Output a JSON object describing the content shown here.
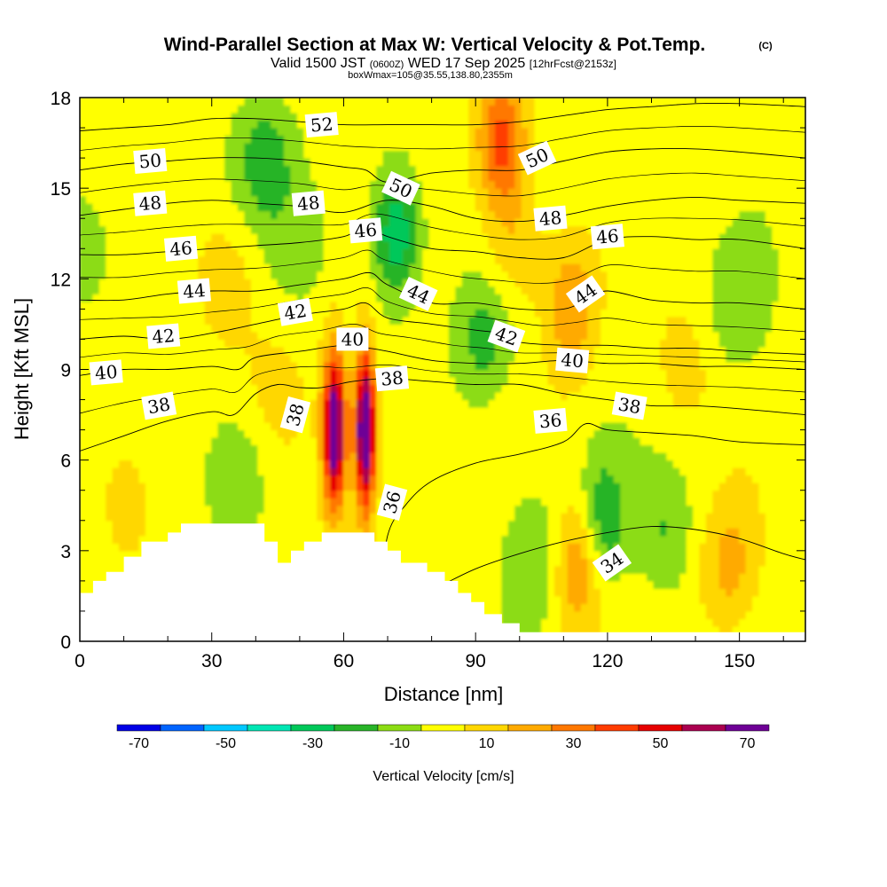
{
  "figure": {
    "title_main": "Wind-Parallel Section at Max W: Vertical Velocity & Pot.Temp.",
    "title_mark": "(C)",
    "subtitle_a": "Valid 1500 JST",
    "subtitle_b": "(0600Z)",
    "subtitle_c": "WED 17 Sep 2025",
    "subtitle_d": "[12hrFcst@2153z]",
    "subtitle_line3": "boxWmax=105@35.55,138.80,2355m"
  },
  "chart_data": {
    "type": "heatmap",
    "title": "Wind-Parallel Section at Max W: Vertical Velocity & Pot.Temp.",
    "xlabel": "Distance [nm]",
    "ylabel": "Height [Kft MSL]",
    "xlim": [
      0,
      165
    ],
    "ylim": [
      0,
      18
    ],
    "x_ticks": [
      0,
      30,
      60,
      90,
      120,
      150
    ],
    "y_ticks": [
      0,
      3,
      6,
      9,
      12,
      15,
      18
    ],
    "colorbar": {
      "label": "Vertical Velocity [cm/s]",
      "bounds": [
        -75,
        -65,
        -55,
        -45,
        -35,
        -25,
        -15,
        -5,
        5,
        15,
        25,
        35,
        45,
        55,
        65,
        75
      ],
      "colors": [
        "#0000e6",
        "#0064ff",
        "#00c8ff",
        "#00e6b4",
        "#00c85a",
        "#28b428",
        "#8cdc14",
        "#ffff00",
        "#ffd700",
        "#ffaa00",
        "#ff7800",
        "#ff3c00",
        "#e60000",
        "#aa0050",
        "#6e0096"
      ],
      "tick_values": [
        -70,
        -50,
        -30,
        -10,
        10,
        30,
        50,
        70
      ],
      "tick_labels": [
        "-70",
        "-50",
        "-30",
        "-10",
        "10",
        "30",
        "50",
        "70"
      ]
    },
    "vertical_velocity_features": [
      {
        "x": 58,
        "y": 7.0,
        "w": 80,
        "desc": "updraft"
      },
      {
        "x": 65,
        "y": 7.0,
        "w": 90,
        "desc": "updraft core"
      },
      {
        "x": 45,
        "y": 8.5,
        "w": 6
      },
      {
        "x": 96,
        "y": 16.5,
        "w": 40
      },
      {
        "x": 99,
        "y": 13.0,
        "w": 15
      },
      {
        "x": 112,
        "y": 11.0,
        "w": 25
      },
      {
        "x": 113,
        "y": 2.5,
        "w": 28
      },
      {
        "x": 148,
        "y": 2.5,
        "w": 20
      },
      {
        "x": 11,
        "y": 5.0,
        "w": 10
      },
      {
        "x": 34,
        "y": 12.0,
        "w": 12
      },
      {
        "x": 137,
        "y": 9.0,
        "w": 10
      },
      {
        "x": 72,
        "y": 13.5,
        "w": -35
      },
      {
        "x": 42,
        "y": 16.0,
        "w": -20
      },
      {
        "x": 92,
        "y": 10.0,
        "w": -20
      },
      {
        "x": 119,
        "y": 4.0,
        "w": -24
      },
      {
        "x": 36,
        "y": 5.5,
        "w": -16
      },
      {
        "x": 104,
        "y": 3.0,
        "w": -15
      },
      {
        "x": 133,
        "y": 3.5,
        "w": -15
      },
      {
        "x": 150,
        "y": 11.0,
        "w": -14
      },
      {
        "x": 2,
        "y": 13.0,
        "w": -10
      },
      {
        "x": 50,
        "y": 13.0,
        "w": -8
      }
    ],
    "terrain": [
      [
        0,
        1.6
      ],
      [
        3,
        1.6
      ],
      [
        3,
        2.0
      ],
      [
        6,
        2.0
      ],
      [
        6,
        2.3
      ],
      [
        10,
        2.3
      ],
      [
        10,
        2.8
      ],
      [
        14,
        2.8
      ],
      [
        14,
        3.3
      ],
      [
        20,
        3.3
      ],
      [
        20,
        3.6
      ],
      [
        23,
        3.6
      ],
      [
        23,
        3.9
      ],
      [
        42,
        3.9
      ],
      [
        42,
        3.3
      ],
      [
        45,
        3.3
      ],
      [
        45,
        2.6
      ],
      [
        48,
        2.6
      ],
      [
        48,
        3.0
      ],
      [
        51,
        3.0
      ],
      [
        51,
        3.3
      ],
      [
        55,
        3.3
      ],
      [
        55,
        3.6
      ],
      [
        67,
        3.6
      ],
      [
        67,
        3.3
      ],
      [
        70,
        3.3
      ],
      [
        70,
        3.0
      ],
      [
        73,
        3.0
      ],
      [
        73,
        2.6
      ],
      [
        79,
        2.6
      ],
      [
        79,
        2.3
      ],
      [
        83,
        2.3
      ],
      [
        83,
        2.0
      ],
      [
        86,
        2.0
      ],
      [
        86,
        1.6
      ],
      [
        89,
        1.6
      ],
      [
        89,
        1.3
      ],
      [
        92,
        1.3
      ],
      [
        92,
        0.9
      ],
      [
        96,
        0.9
      ],
      [
        96,
        0.6
      ],
      [
        100,
        0.6
      ],
      [
        100,
        0.3
      ],
      [
        165,
        0.3
      ]
    ],
    "theta_contours": [
      {
        "value": 34,
        "label": "34",
        "pts": [
          [
            60,
            0.4
          ],
          [
            70,
            1.1
          ],
          [
            80,
            1.7
          ],
          [
            90,
            2.4
          ],
          [
            100,
            2.9
          ],
          [
            110,
            3.3
          ],
          [
            120,
            3.6
          ],
          [
            130,
            3.8
          ],
          [
            140,
            3.7
          ],
          [
            150,
            3.4
          ],
          [
            160,
            2.9
          ],
          [
            165,
            2.7
          ]
        ]
      },
      {
        "value": 36,
        "label": "36",
        "pts": [
          [
            68,
            1.2
          ],
          [
            70,
            3.5
          ],
          [
            74,
            4.5
          ],
          [
            80,
            5.3
          ],
          [
            90,
            5.9
          ],
          [
            100,
            6.2
          ],
          [
            110,
            6.6
          ],
          [
            115,
            7.2
          ],
          [
            120,
            7.0
          ],
          [
            130,
            6.9
          ],
          [
            140,
            6.8
          ],
          [
            150,
            6.6
          ],
          [
            165,
            6.5
          ]
        ]
      },
      {
        "value": 38,
        "label": "38",
        "pts": [
          [
            0,
            6.3
          ],
          [
            10,
            6.8
          ],
          [
            20,
            7.3
          ],
          [
            30,
            7.6
          ],
          [
            35,
            7.5
          ],
          [
            40,
            8.2
          ],
          [
            45,
            8.5
          ],
          [
            50,
            8.4
          ],
          [
            55,
            8.4
          ],
          [
            62,
            8.6
          ],
          [
            70,
            8.7
          ],
          [
            80,
            8.6
          ],
          [
            90,
            8.5
          ],
          [
            100,
            8.5
          ],
          [
            110,
            8.2
          ],
          [
            120,
            8.0
          ],
          [
            130,
            7.8
          ],
          [
            140,
            7.8
          ],
          [
            150,
            7.7
          ],
          [
            165,
            7.5
          ]
        ]
      },
      {
        "value": 40,
        "label": "40",
        "pts": [
          [
            0,
            8.8
          ],
          [
            10,
            9.0
          ],
          [
            20,
            9.0
          ],
          [
            30,
            9.1
          ],
          [
            36,
            9.0
          ],
          [
            40,
            9.4
          ],
          [
            50,
            9.6
          ],
          [
            60,
            9.8
          ],
          [
            66,
            9.7
          ],
          [
            70,
            9.6
          ],
          [
            80,
            9.3
          ],
          [
            90,
            9.2
          ],
          [
            100,
            9.2
          ],
          [
            110,
            9.3
          ],
          [
            120,
            9.2
          ],
          [
            130,
            9.2
          ],
          [
            140,
            9.1
          ],
          [
            150,
            9.1
          ],
          [
            165,
            9.0
          ]
        ]
      },
      {
        "value": 42,
        "label": "42",
        "pts": [
          [
            0,
            10.0
          ],
          [
            10,
            10.1
          ],
          [
            20,
            10.0
          ],
          [
            30,
            10.2
          ],
          [
            40,
            10.5
          ],
          [
            50,
            10.8
          ],
          [
            60,
            11.0
          ],
          [
            65,
            11.2
          ],
          [
            70,
            10.7
          ],
          [
            80,
            10.5
          ],
          [
            90,
            10.3
          ],
          [
            95,
            10.2
          ],
          [
            100,
            9.9
          ],
          [
            110,
            9.8
          ],
          [
            120,
            9.8
          ],
          [
            130,
            9.7
          ],
          [
            140,
            9.7
          ],
          [
            150,
            9.6
          ],
          [
            165,
            9.5
          ]
        ]
      },
      {
        "value": 44,
        "label": "44",
        "pts": [
          [
            0,
            11.3
          ],
          [
            10,
            11.3
          ],
          [
            20,
            11.5
          ],
          [
            30,
            11.6
          ],
          [
            40,
            11.6
          ],
          [
            50,
            11.8
          ],
          [
            60,
            12.0
          ],
          [
            66,
            12.2
          ],
          [
            70,
            11.8
          ],
          [
            80,
            11.2
          ],
          [
            90,
            11.2
          ],
          [
            100,
            11.0
          ],
          [
            110,
            11.0
          ],
          [
            115,
            11.3
          ],
          [
            120,
            11.6
          ],
          [
            130,
            11.3
          ],
          [
            140,
            11.2
          ],
          [
            150,
            11.2
          ],
          [
            165,
            11.0
          ]
        ]
      },
      {
        "value": 46,
        "label": "46",
        "pts": [
          [
            0,
            12.8
          ],
          [
            10,
            12.8
          ],
          [
            20,
            12.9
          ],
          [
            30,
            13.0
          ],
          [
            40,
            13.1
          ],
          [
            50,
            13.2
          ],
          [
            60,
            13.4
          ],
          [
            65,
            13.7
          ],
          [
            70,
            13.4
          ],
          [
            80,
            13.0
          ],
          [
            90,
            12.9
          ],
          [
            100,
            12.7
          ],
          [
            110,
            12.7
          ],
          [
            120,
            13.3
          ],
          [
            130,
            13.4
          ],
          [
            140,
            13.3
          ],
          [
            150,
            13.3
          ],
          [
            165,
            13.0
          ]
        ]
      },
      {
        "value": 48,
        "label": "48",
        "pts": [
          [
            0,
            14.1
          ],
          [
            10,
            14.3
          ],
          [
            20,
            14.5
          ],
          [
            30,
            14.6
          ],
          [
            40,
            14.5
          ],
          [
            50,
            14.4
          ],
          [
            60,
            14.2
          ],
          [
            70,
            14.6
          ],
          [
            80,
            14.4
          ],
          [
            90,
            14.0
          ],
          [
            100,
            13.9
          ],
          [
            110,
            14.1
          ],
          [
            120,
            14.4
          ],
          [
            130,
            14.6
          ],
          [
            140,
            14.7
          ],
          [
            150,
            14.6
          ],
          [
            165,
            14.5
          ]
        ]
      },
      {
        "value": 50,
        "label": "50",
        "pts": [
          [
            0,
            15.6
          ],
          [
            10,
            15.8
          ],
          [
            20,
            15.9
          ],
          [
            30,
            16.0
          ],
          [
            40,
            16.0
          ],
          [
            50,
            15.9
          ],
          [
            60,
            15.7
          ],
          [
            65,
            15.6
          ],
          [
            70,
            15.2
          ],
          [
            80,
            15.5
          ],
          [
            90,
            15.6
          ],
          [
            100,
            15.6
          ],
          [
            110,
            15.9
          ],
          [
            120,
            16.2
          ],
          [
            130,
            16.3
          ],
          [
            140,
            16.3
          ],
          [
            150,
            16.2
          ],
          [
            165,
            16.0
          ]
        ]
      },
      {
        "value": 52,
        "label": "52",
        "pts": [
          [
            0,
            16.9
          ],
          [
            10,
            17.0
          ],
          [
            20,
            17.1
          ],
          [
            30,
            17.3
          ],
          [
            40,
            17.3
          ],
          [
            50,
            17.2
          ],
          [
            60,
            17.1
          ],
          [
            70,
            17.1
          ],
          [
            80,
            17.1
          ],
          [
            90,
            17.1
          ],
          [
            100,
            17.2
          ],
          [
            110,
            17.4
          ],
          [
            120,
            17.6
          ],
          [
            130,
            17.7
          ],
          [
            140,
            17.8
          ],
          [
            150,
            17.8
          ],
          [
            165,
            17.7
          ]
        ]
      }
    ],
    "contour_labels": [
      {
        "text": "52",
        "x": 55,
        "y": 17.1,
        "angle": -5
      },
      {
        "text": "50",
        "x": 16,
        "y": 15.9,
        "angle": -5
      },
      {
        "text": "50",
        "x": 73,
        "y": 15.0,
        "angle": 25
      },
      {
        "text": "50",
        "x": 104,
        "y": 16.0,
        "angle": -25
      },
      {
        "text": "48",
        "x": 16,
        "y": 14.5,
        "angle": -5
      },
      {
        "text": "48",
        "x": 52,
        "y": 14.5,
        "angle": -5
      },
      {
        "text": "48",
        "x": 107,
        "y": 14.0,
        "angle": -5
      },
      {
        "text": "46",
        "x": 23,
        "y": 13.0,
        "angle": -5
      },
      {
        "text": "46",
        "x": 65,
        "y": 13.6,
        "angle": -5
      },
      {
        "text": "46",
        "x": 120,
        "y": 13.4,
        "angle": -5
      },
      {
        "text": "44",
        "x": 26,
        "y": 11.6,
        "angle": -5
      },
      {
        "text": "44",
        "x": 77,
        "y": 11.5,
        "angle": 25
      },
      {
        "text": "44",
        "x": 115,
        "y": 11.5,
        "angle": -35
      },
      {
        "text": "42",
        "x": 19,
        "y": 10.1,
        "angle": -5
      },
      {
        "text": "42",
        "x": 49,
        "y": 10.9,
        "angle": -10
      },
      {
        "text": "42",
        "x": 97,
        "y": 10.1,
        "angle": 20
      },
      {
        "text": "40",
        "x": 6,
        "y": 8.9,
        "angle": -5
      },
      {
        "text": "40",
        "x": 62,
        "y": 10.0,
        "angle": 0
      },
      {
        "text": "40",
        "x": 112,
        "y": 9.3,
        "angle": 5
      },
      {
        "text": "38",
        "x": 18,
        "y": 7.8,
        "angle": -10
      },
      {
        "text": "38",
        "x": 49,
        "y": 7.5,
        "angle": -75
      },
      {
        "text": "38",
        "x": 71,
        "y": 8.7,
        "angle": -5
      },
      {
        "text": "38",
        "x": 125,
        "y": 7.8,
        "angle": 10
      },
      {
        "text": "36",
        "x": 71,
        "y": 4.6,
        "angle": -75
      },
      {
        "text": "36",
        "x": 107,
        "y": 7.3,
        "angle": -5
      },
      {
        "text": "34",
        "x": 121,
        "y": 2.6,
        "angle": -35
      }
    ]
  }
}
